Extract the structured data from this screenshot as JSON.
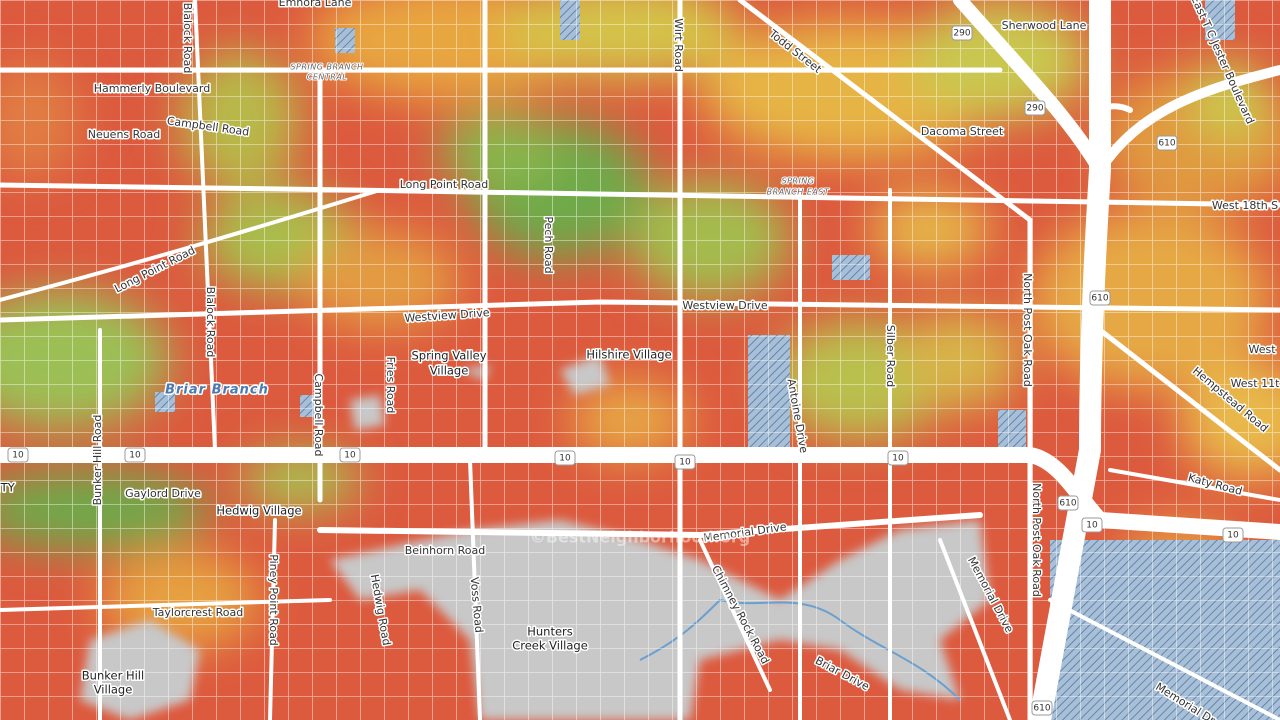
{
  "map": {
    "streets": [
      "Emnora Lane",
      "Blalock Road",
      "Hammerly Boulevard",
      "Campbell Road",
      "Neuens Road",
      "Long Point Road",
      "Long Point Road",
      "Blalock Road",
      "Wirt Road",
      "Todd Street",
      "Sherwood Lane",
      "East T C Jester Boulevard",
      "Dacoma Street",
      "West 18th S",
      "Pech Road",
      "Westview Drive",
      "Westview Drive",
      "Silber Road",
      "Antoine Drive",
      "North Post Oak Road",
      "West",
      "West 11t",
      "Hempstead Road",
      "Campbell Road",
      "Fries Road",
      "Bunker Hill Road",
      "Gaylord Drive",
      "Katy Road",
      "North Post Oak Road",
      "Beinhorn Road",
      "Memorial Drive",
      "Piney Point Road",
      "Hedwig Road",
      "Voss Road",
      "Chimney Rock Road",
      "Memorial Drive",
      "Taylorcrest Road",
      "Briar Drive",
      "Memorial Dr"
    ],
    "districts": [
      "SPRING BRANCH",
      "CENTRAL",
      "SPRING",
      "BRANCH EAST"
    ],
    "places": [
      "Spring Valley",
      "Village",
      "Hilshire Village",
      "Hedwig Village",
      "Hunters",
      "Creek Village",
      "Bunker Hill",
      "Village",
      "ITY"
    ],
    "water": [
      "Briar Branch"
    ],
    "shields": [
      "10",
      "10",
      "10",
      "10",
      "10",
      "10",
      "10",
      "10",
      "290",
      "290",
      "610",
      "610",
      "610",
      "610"
    ],
    "watermark": "©BestNeighborhood.org"
  }
}
